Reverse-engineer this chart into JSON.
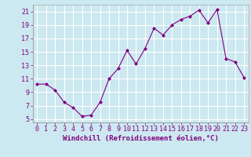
{
  "x": [
    0,
    1,
    2,
    3,
    4,
    5,
    6,
    7,
    8,
    9,
    10,
    11,
    12,
    13,
    14,
    15,
    16,
    17,
    18,
    19,
    20,
    21,
    22,
    23
  ],
  "y": [
    10.2,
    10.2,
    9.3,
    7.5,
    6.7,
    5.4,
    5.6,
    7.5,
    11.0,
    12.5,
    15.2,
    13.2,
    15.5,
    18.5,
    17.5,
    19.0,
    19.8,
    20.3,
    21.2,
    19.3,
    21.3,
    14.0,
    13.5,
    11.2
  ],
  "line_color": "#800080",
  "marker": "D",
  "marker_size": 2,
  "bg_color": "#cce8f0",
  "grid_color": "#ffffff",
  "xlabel": "Windchill (Refroidissement éolien,°C)",
  "ylabel": "",
  "xlim": [
    -0.5,
    23.5
  ],
  "ylim": [
    4.5,
    22
  ],
  "yticks": [
    5,
    7,
    9,
    11,
    13,
    15,
    17,
    19,
    21
  ],
  "xticks": [
    0,
    1,
    2,
    3,
    4,
    5,
    6,
    7,
    8,
    9,
    10,
    11,
    12,
    13,
    14,
    15,
    16,
    17,
    18,
    19,
    20,
    21,
    22,
    23
  ],
  "label_color": "#800080",
  "tick_color": "#800080",
  "font_size": 6.5
}
